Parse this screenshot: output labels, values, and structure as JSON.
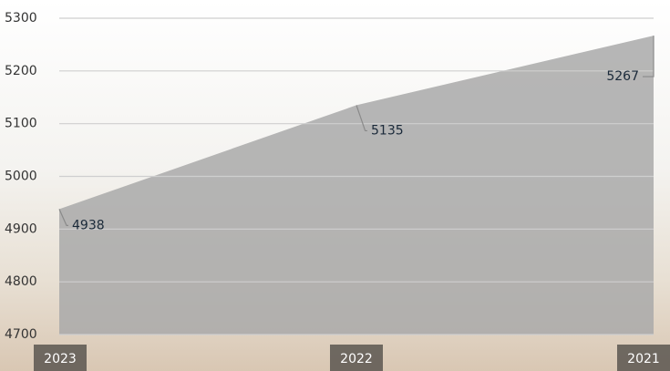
{
  "chart_data": {
    "type": "area",
    "categories": [
      "2023",
      "2022",
      "2021"
    ],
    "values": [
      4938,
      5135,
      5267
    ],
    "color": "#a9a9a9",
    "ylim": [
      4700,
      5300
    ],
    "yticks": [
      4700,
      4800,
      4900,
      5000,
      5100,
      5200,
      5300
    ],
    "grid": true
  }
}
